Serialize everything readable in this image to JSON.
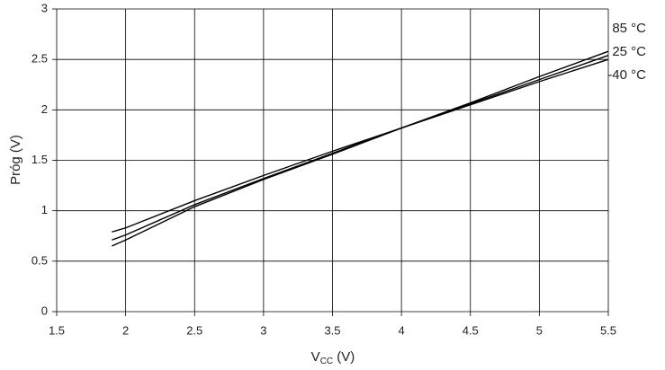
{
  "chart_data": {
    "type": "line",
    "x_label": {
      "main": "V",
      "sub": "CC",
      "rest": " (V)"
    },
    "y_label": "Próg (V)",
    "x": [
      1.9,
      2,
      2.5,
      3,
      3.5,
      4,
      4.5,
      5,
      5.5
    ],
    "series": [
      {
        "name": "85 °C",
        "color": "#000000",
        "values": [
          0.65,
          0.71,
          1.04,
          1.31,
          1.56,
          1.82,
          2.07,
          2.33,
          2.58
        ]
      },
      {
        "name": "25 °C",
        "color": "#000000",
        "values": [
          0.71,
          0.76,
          1.06,
          1.32,
          1.57,
          1.82,
          2.06,
          2.3,
          2.54
        ]
      },
      {
        "name": "-40 °C",
        "color": "#000000",
        "values": [
          0.79,
          0.83,
          1.1,
          1.35,
          1.59,
          1.82,
          2.05,
          2.28,
          2.5
        ]
      }
    ],
    "xlim": [
      1.5,
      5.5
    ],
    "xticks": [
      1.5,
      2,
      2.5,
      3,
      3.5,
      4,
      4.5,
      5,
      5.5
    ],
    "ylim": [
      0,
      3
    ],
    "yticks": [
      0,
      0.5,
      1,
      1.5,
      2,
      2.5,
      3
    ],
    "grid": true
  }
}
